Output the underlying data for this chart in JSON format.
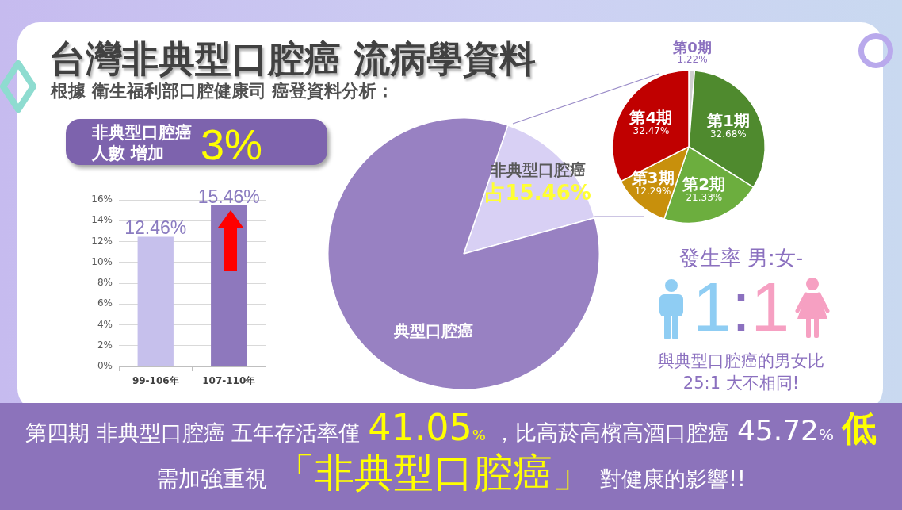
{
  "chart_data": [
    {
      "type": "other",
      "title": "台灣非典型口腔癌 流病學資料",
      "subtitle": "根據 衛生福利部口腔健康司 癌登資料分析："
    },
    {
      "type": "bar",
      "title": "非典型口腔癌人數 增加",
      "annotations": [
        "3%"
      ],
      "categories": [
        "99-106年",
        "107-110年"
      ],
      "values": [
        12.46,
        15.46
      ],
      "colors": [
        "#c6c0ec",
        "#8e78bd"
      ],
      "value_labels": [
        "12.46%",
        "15.46%"
      ],
      "ylim": [
        0,
        16
      ],
      "yticks": [
        {
          "value": 0,
          "label": "0%"
        },
        {
          "value": 2,
          "label": "2%"
        },
        {
          "value": 4,
          "label": "4%"
        },
        {
          "value": 6,
          "label": "6%"
        },
        {
          "value": 8,
          "label": "8%"
        },
        {
          "value": 10,
          "label": "10%"
        },
        {
          "value": 12,
          "label": "12%"
        },
        {
          "value": 14,
          "label": "14%"
        },
        {
          "value": 16,
          "label": "16%"
        }
      ],
      "grid": "y"
    },
    {
      "type": "pie",
      "categories": [
        "非典型口腔癌",
        "典型口腔癌"
      ],
      "values": [
        15.46,
        84.54
      ],
      "colors": [
        "#d8d0f4",
        "#9881c2"
      ],
      "value_labels": [
        "占15.46%",
        null
      ]
    },
    {
      "type": "pie",
      "categories": [
        "第0期",
        "第1期",
        "第2期",
        "第3期",
        "第4期"
      ],
      "values": [
        1.22,
        32.68,
        21.33,
        12.29,
        32.47
      ],
      "colors": [
        "#d0d0d0",
        "#4f8a2e",
        "#6cae3e",
        "#c8900c",
        "#c00000"
      ],
      "value_labels": [
        "1.22%",
        "32.68%",
        "21.33%",
        "12.29%",
        "32.47%"
      ]
    },
    {
      "type": "other",
      "title": "發生率 男:女-",
      "annotations": [
        "1:1",
        "與典型口腔癌的男女比 25:1 大不相同!"
      ]
    },
    {
      "type": "other",
      "annotations": [
        "第四期 非典型口腔癌 五年存活率僅",
        "41.05%",
        "，比高菸高檳高酒口腔癌",
        "45.72%",
        "低",
        "需加強重視",
        "「非典型口腔癌」",
        "對健康的影響!!"
      ]
    }
  ]
}
